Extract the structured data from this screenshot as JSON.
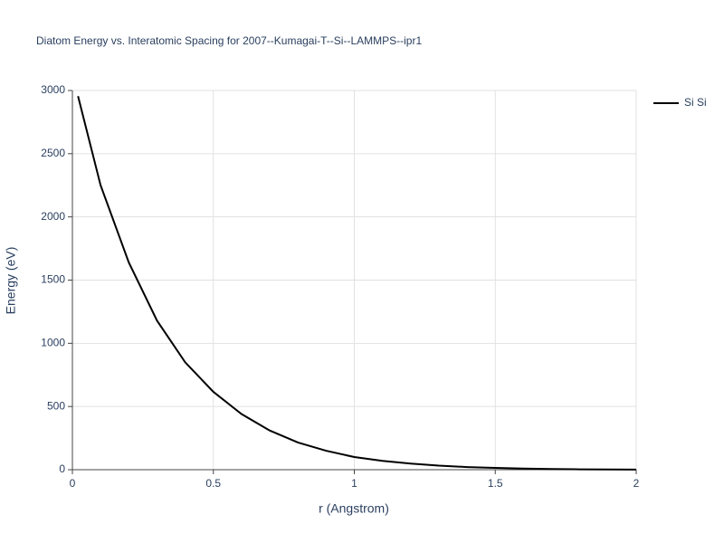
{
  "chart_data": {
    "type": "line",
    "title": "Diatom Energy vs. Interatomic Spacing for 2007--Kumagai-T--Si--LAMMPS--ipr1",
    "x_label": "r (Angstrom)",
    "y_label": "Energy (eV)",
    "x": [
      0.02,
      0.1,
      0.2,
      0.3,
      0.4,
      0.5,
      0.6,
      0.7,
      0.8,
      0.9,
      1.0,
      1.1,
      1.2,
      1.3,
      1.4,
      1.5,
      1.6,
      1.7,
      1.8,
      1.9,
      2.0
    ],
    "series": [
      {
        "name": "Si Si",
        "color": "#000000",
        "values": [
          2955,
          2250,
          1640,
          1180,
          850,
          616,
          440,
          310,
          215,
          150,
          100,
          70,
          48,
          32,
          21,
          14,
          9,
          5,
          3,
          2,
          1
        ]
      }
    ],
    "xlim": [
      0,
      2
    ],
    "xticks": [
      0,
      0.5,
      1,
      1.5,
      2
    ],
    "ylim": [
      0,
      3000
    ],
    "yticks": [
      0,
      500,
      1000,
      1500,
      2000,
      2500,
      3000
    ],
    "grid": true
  }
}
